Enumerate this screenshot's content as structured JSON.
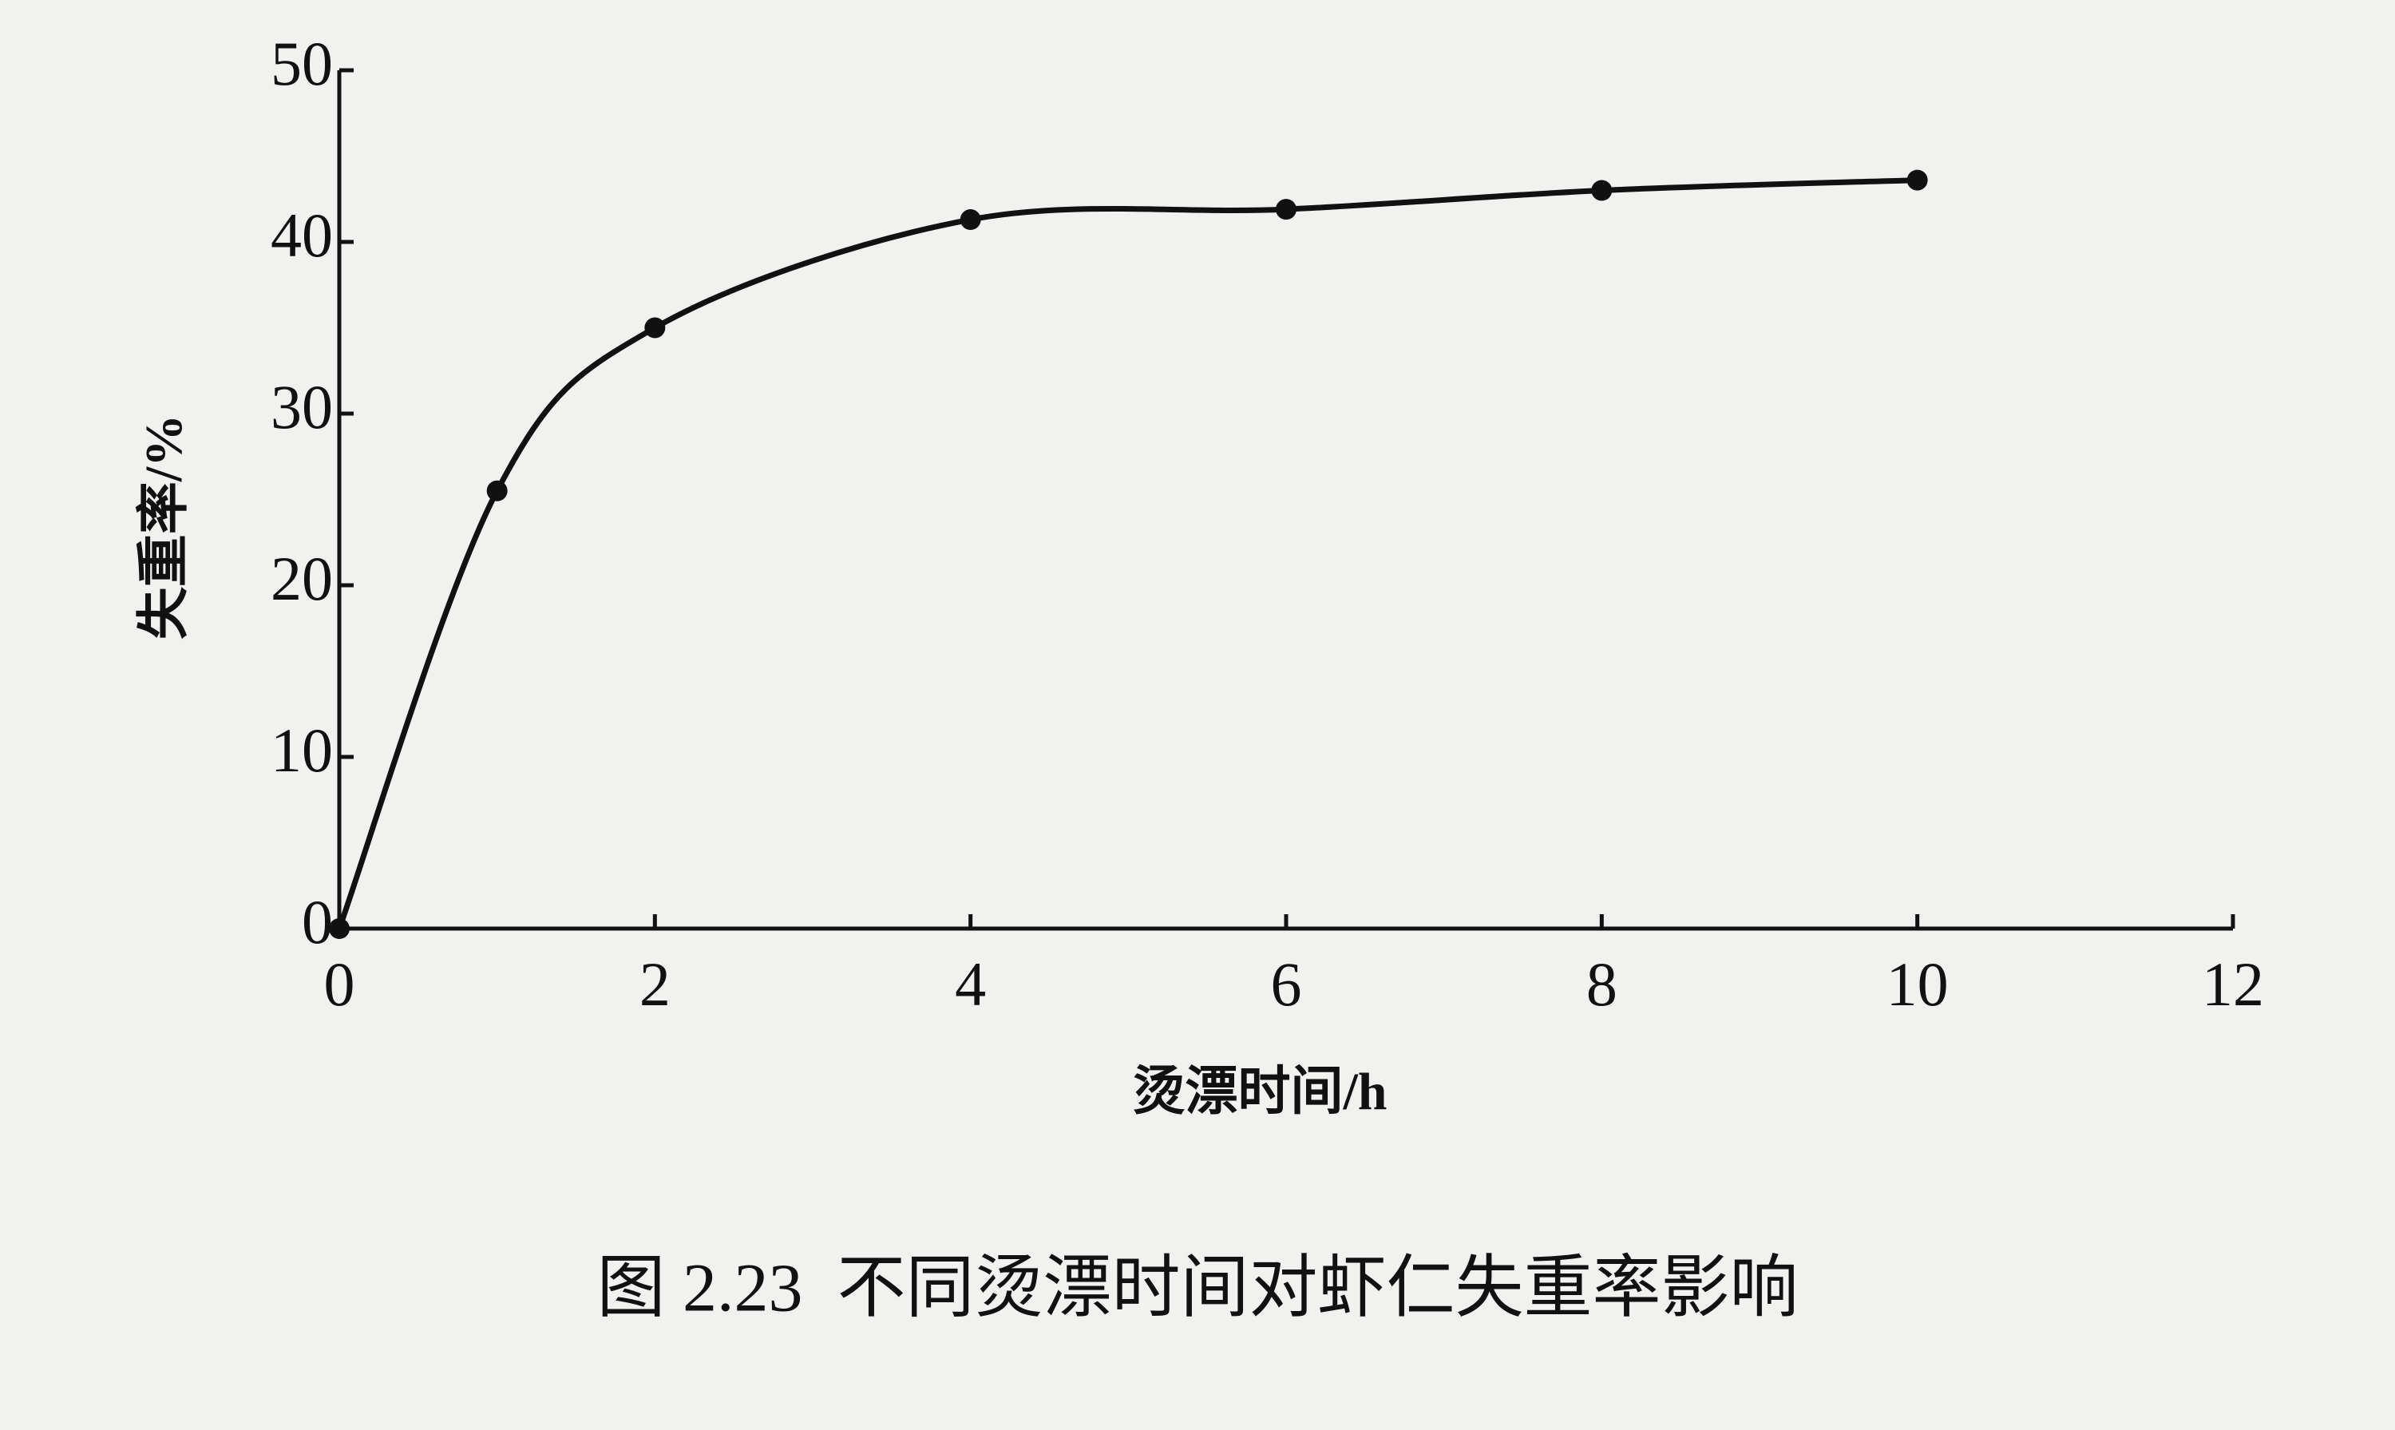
{
  "chart_data": {
    "type": "line",
    "caption": "图 2.23  不同烫漂时间对虾仁失重率影响",
    "x_label": "烫漂时间/h",
    "y_label": "失重率/%",
    "x": [
      0,
      1,
      2,
      4,
      6,
      8,
      10
    ],
    "values": [
      0,
      25.5,
      35,
      41.3,
      41.9,
      43,
      43.6
    ],
    "color": "#111111",
    "xlim": [
      0,
      12
    ],
    "xticks": [
      0,
      2,
      4,
      6,
      8,
      10,
      12
    ],
    "ylim": [
      0,
      50
    ],
    "yticks": [
      0,
      10,
      20,
      30,
      40,
      50
    ],
    "smooth": true,
    "markers": true,
    "grid": false
  }
}
